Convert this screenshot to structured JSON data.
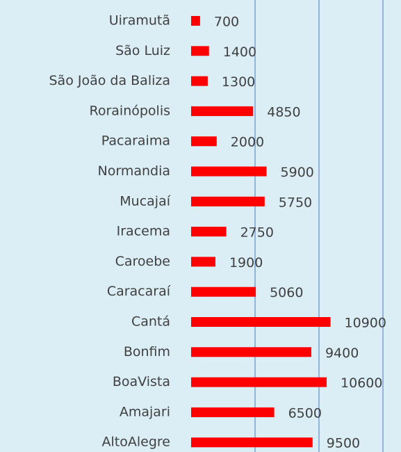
{
  "chart_data": {
    "type": "bar",
    "orientation": "horizontal",
    "categories": [
      "Uiramutã",
      "São Luiz",
      "São João da Baliza",
      "Rorainópolis",
      "Pacaraima",
      "Normandia",
      "Mucajaí",
      "Iracema",
      "Caroebe",
      "Caracaraí",
      "Cantá",
      "Bonfim",
      "BoaVista",
      "Amajari",
      "AltoAlegre"
    ],
    "values": [
      700,
      1400,
      1300,
      4850,
      2000,
      5900,
      5750,
      2750,
      1900,
      5060,
      10900,
      9400,
      10600,
      6500,
      9500
    ],
    "color": "#ff0000",
    "xlim": [
      0,
      15000
    ],
    "xticks": [
      5000,
      10000,
      15000
    ],
    "grid": true,
    "grid_color": "#4a78c2"
  }
}
